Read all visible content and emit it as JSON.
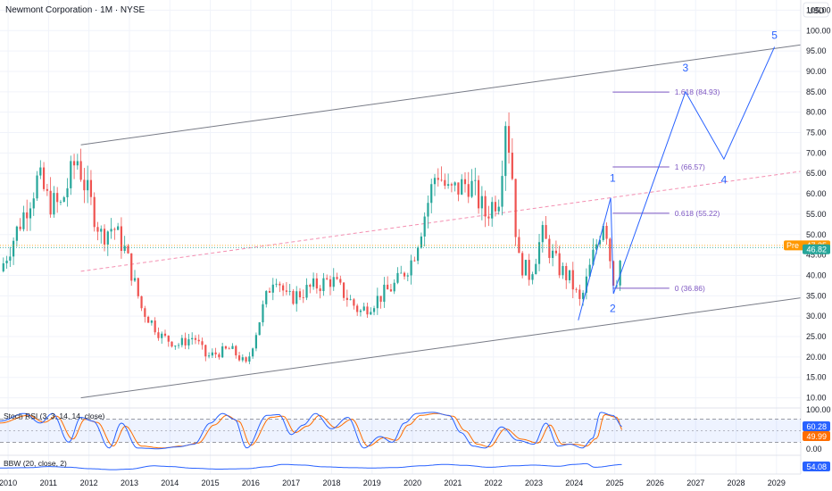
{
  "header": {
    "title": "Newmont Corporation · 1M · NYSE",
    "currency": "USD"
  },
  "price_axis": {
    "ticks": [
      "105.00",
      "100.00",
      "95.00",
      "90.00",
      "85.00",
      "80.00",
      "75.00",
      "70.00",
      "65.00",
      "60.00",
      "55.00",
      "50.00",
      "45.00",
      "40.00",
      "35.00",
      "30.00",
      "25.00",
      "20.00",
      "15.00",
      "10.00"
    ],
    "pre_label": "Pre",
    "pre_value": "47.35",
    "last_value": "46.82"
  },
  "time_axis": {
    "labels": [
      "2010",
      "2011",
      "2012",
      "2013",
      "2014",
      "2015",
      "2016",
      "2017",
      "2018",
      "2019",
      "2020",
      "2021",
      "2022",
      "2023",
      "2024",
      "2025",
      "2026",
      "2027",
      "2028",
      "2029"
    ]
  },
  "fib_levels": [
    {
      "label": "1.618 (84.93)",
      "value": 84.93
    },
    {
      "label": "1 (66.57)",
      "value": 66.57
    },
    {
      "label": "0.618 (55.22)",
      "value": 55.22
    },
    {
      "label": "0 (36.86)",
      "value": 36.86
    }
  ],
  "waves": [
    {
      "label": "1",
      "date": 2024.95,
      "value": 63
    },
    {
      "label": "2",
      "date": 2024.95,
      "value": 31
    },
    {
      "label": "3",
      "date": 2026.75,
      "value": 90
    },
    {
      "label": "4",
      "date": 2027.7,
      "value": 62.5
    },
    {
      "label": "5",
      "date": 2028.95,
      "value": 98
    }
  ],
  "indicators": {
    "stoch": {
      "title": "Stoch RSI (3, 3, 14, 14, close)",
      "ticks": [
        "100.00",
        "0.00"
      ],
      "k_value": "60.28",
      "d_value": "49.99"
    },
    "bbw": {
      "title": "BBW (20, close, 2)",
      "value": "54.08"
    }
  },
  "colors": {
    "up": "#26a69a",
    "down": "#ef5350",
    "channel": "#787b86",
    "midline": "#f48fb1",
    "fib": "#7e57c2",
    "wave": "#2962ff",
    "stoch_k": "#2962ff",
    "stoch_d": "#ff6d00",
    "bbw": "#2962ff",
    "pre_tag": "#ff9800",
    "last_tag": "#26a69a"
  },
  "chart_data": {
    "type": "candlestick",
    "title": "Newmont Corporation · 1M · NYSE",
    "x_unit": "year",
    "xlim": [
      2009.8,
      2029.6
    ],
    "ylim": [
      7.5,
      107.5
    ],
    "scale": "linear",
    "ohlc_anchors": [
      {
        "date": 2009.8,
        "close": 41
      },
      {
        "date": 2010.3,
        "close": 53
      },
      {
        "date": 2010.75,
        "close": 64
      },
      {
        "date": 2011.0,
        "close": 58
      },
      {
        "date": 2011.3,
        "close": 57
      },
      {
        "date": 2011.7,
        "close": 69
      },
      {
        "date": 2011.9,
        "close": 62
      },
      {
        "date": 2012.3,
        "close": 50
      },
      {
        "date": 2012.6,
        "close": 52
      },
      {
        "date": 2012.9,
        "close": 46
      },
      {
        "date": 2013.3,
        "close": 32
      },
      {
        "date": 2013.8,
        "close": 25
      },
      {
        "date": 2014.2,
        "close": 23
      },
      {
        "date": 2014.6,
        "close": 25
      },
      {
        "date": 2014.9,
        "close": 20
      },
      {
        "date": 2015.5,
        "close": 22
      },
      {
        "date": 2015.9,
        "close": 18
      },
      {
        "date": 2016.3,
        "close": 32
      },
      {
        "date": 2016.6,
        "close": 41
      },
      {
        "date": 2016.9,
        "close": 34
      },
      {
        "date": 2017.5,
        "close": 37
      },
      {
        "date": 2018.0,
        "close": 39
      },
      {
        "date": 2018.7,
        "close": 31
      },
      {
        "date": 2019.1,
        "close": 34
      },
      {
        "date": 2019.6,
        "close": 38
      },
      {
        "date": 2020.0,
        "close": 44
      },
      {
        "date": 2020.3,
        "close": 55
      },
      {
        "date": 2020.6,
        "close": 66
      },
      {
        "date": 2020.9,
        "close": 60
      },
      {
        "date": 2021.4,
        "close": 63
      },
      {
        "date": 2021.8,
        "close": 55
      },
      {
        "date": 2022.15,
        "close": 60
      },
      {
        "date": 2022.3,
        "close": 79
      },
      {
        "date": 2022.45,
        "close": 67
      },
      {
        "date": 2022.6,
        "close": 44
      },
      {
        "date": 2022.9,
        "close": 40
      },
      {
        "date": 2023.2,
        "close": 50
      },
      {
        "date": 2023.6,
        "close": 42
      },
      {
        "date": 2023.9,
        "close": 39
      },
      {
        "date": 2024.15,
        "close": 33
      },
      {
        "date": 2024.5,
        "close": 46
      },
      {
        "date": 2024.75,
        "close": 55
      },
      {
        "date": 2024.9,
        "close": 43
      },
      {
        "date": 2025.0,
        "close": 37
      },
      {
        "date": 2025.2,
        "close": 46.82
      }
    ],
    "last_close": 46.82,
    "premarket": 47.35,
    "channel_upper": [
      [
        2011.8,
        72
      ],
      [
        2029.6,
        96.5
      ]
    ],
    "channel_lower": [
      [
        2011.8,
        10
      ],
      [
        2029.6,
        34.5
      ]
    ],
    "channel_mid": [
      [
        2011.8,
        41
      ],
      [
        2029.6,
        65.5
      ]
    ],
    "projection_path": [
      [
        2024.1,
        29
      ],
      [
        2024.9,
        59
      ],
      [
        2024.97,
        35.5
      ],
      [
        2026.75,
        85
      ],
      [
        2027.7,
        68.5
      ],
      [
        2028.95,
        96
      ]
    ]
  },
  "stoch_data": {
    "ylim": [
      0,
      100
    ],
    "k_anchors": [
      [
        2009.8,
        75
      ],
      [
        2010.4,
        95
      ],
      [
        2010.8,
        70
      ],
      [
        2011.1,
        95
      ],
      [
        2011.5,
        20
      ],
      [
        2011.8,
        85
      ],
      [
        2012.1,
        75
      ],
      [
        2012.5,
        5
      ],
      [
        2012.8,
        70
      ],
      [
        2013.2,
        5
      ],
      [
        2013.7,
        3
      ],
      [
        2014.2,
        8
      ],
      [
        2014.6,
        15
      ],
      [
        2015.0,
        70
      ],
      [
        2015.3,
        95
      ],
      [
        2015.6,
        80
      ],
      [
        2015.9,
        5
      ],
      [
        2016.4,
        90
      ],
      [
        2016.7,
        92
      ],
      [
        2017.0,
        40
      ],
      [
        2017.3,
        65
      ],
      [
        2017.6,
        95
      ],
      [
        2018.0,
        55
      ],
      [
        2018.4,
        85
      ],
      [
        2018.8,
        5
      ],
      [
        2019.2,
        35
      ],
      [
        2019.5,
        20
      ],
      [
        2019.8,
        70
      ],
      [
        2020.1,
        95
      ],
      [
        2020.5,
        98
      ],
      [
        2020.9,
        90
      ],
      [
        2021.2,
        45
      ],
      [
        2021.5,
        10
      ],
      [
        2021.8,
        5
      ],
      [
        2022.2,
        60
      ],
      [
        2022.6,
        25
      ],
      [
        2023.0,
        15
      ],
      [
        2023.3,
        70
      ],
      [
        2023.6,
        10
      ],
      [
        2023.9,
        15
      ],
      [
        2024.2,
        5
      ],
      [
        2024.45,
        30
      ],
      [
        2024.65,
        98
      ],
      [
        2024.95,
        90
      ],
      [
        2025.2,
        60
      ]
    ],
    "d_anchors": [
      [
        2009.8,
        70
      ],
      [
        2010.5,
        90
      ],
      [
        2010.9,
        72
      ],
      [
        2011.2,
        88
      ],
      [
        2011.6,
        28
      ],
      [
        2011.9,
        80
      ],
      [
        2012.2,
        72
      ],
      [
        2012.6,
        10
      ],
      [
        2012.9,
        62
      ],
      [
        2013.3,
        10
      ],
      [
        2013.8,
        5
      ],
      [
        2014.3,
        10
      ],
      [
        2014.7,
        18
      ],
      [
        2015.1,
        65
      ],
      [
        2015.4,
        90
      ],
      [
        2015.7,
        75
      ],
      [
        2016.0,
        12
      ],
      [
        2016.5,
        85
      ],
      [
        2016.8,
        88
      ],
      [
        2017.1,
        45
      ],
      [
        2017.4,
        62
      ],
      [
        2017.7,
        90
      ],
      [
        2018.1,
        58
      ],
      [
        2018.5,
        80
      ],
      [
        2018.9,
        10
      ],
      [
        2019.3,
        32
      ],
      [
        2019.6,
        25
      ],
      [
        2019.9,
        65
      ],
      [
        2020.2,
        90
      ],
      [
        2020.6,
        95
      ],
      [
        2021.0,
        88
      ],
      [
        2021.3,
        50
      ],
      [
        2021.6,
        15
      ],
      [
        2021.9,
        8
      ],
      [
        2022.3,
        55
      ],
      [
        2022.7,
        28
      ],
      [
        2023.1,
        18
      ],
      [
        2023.4,
        65
      ],
      [
        2023.7,
        15
      ],
      [
        2024.0,
        15
      ],
      [
        2024.3,
        10
      ],
      [
        2024.55,
        30
      ],
      [
        2024.75,
        92
      ],
      [
        2025.05,
        85
      ],
      [
        2025.2,
        49.99
      ]
    ]
  },
  "bbw_data": {
    "anchors": [
      [
        2009.8,
        30
      ],
      [
        2010.5,
        32
      ],
      [
        2011.0,
        40
      ],
      [
        2011.5,
        35
      ],
      [
        2012.0,
        25
      ],
      [
        2012.6,
        18
      ],
      [
        2013.0,
        22
      ],
      [
        2013.6,
        45
      ],
      [
        2014.0,
        40
      ],
      [
        2014.6,
        28
      ],
      [
        2015.2,
        22
      ],
      [
        2015.9,
        25
      ],
      [
        2016.4,
        38
      ],
      [
        2016.8,
        55
      ],
      [
        2017.3,
        50
      ],
      [
        2017.8,
        38
      ],
      [
        2018.5,
        32
      ],
      [
        2019.0,
        30
      ],
      [
        2019.6,
        33
      ],
      [
        2020.2,
        45
      ],
      [
        2020.8,
        55
      ],
      [
        2021.3,
        48
      ],
      [
        2021.9,
        35
      ],
      [
        2022.5,
        45
      ],
      [
        2023.0,
        50
      ],
      [
        2023.6,
        42
      ],
      [
        2024.0,
        55
      ],
      [
        2024.3,
        60
      ],
      [
        2024.5,
        35
      ],
      [
        2025.2,
        54.08
      ]
    ]
  }
}
